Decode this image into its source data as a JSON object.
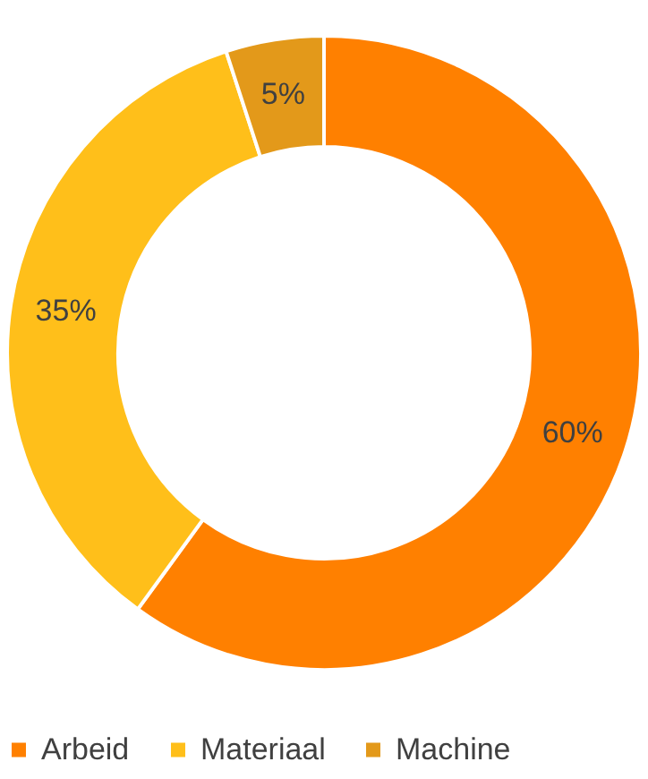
{
  "chart_data": {
    "type": "donut",
    "categories": [
      "Arbeid",
      "Materiaal",
      "Machine"
    ],
    "values": [
      60,
      35,
      5
    ],
    "colors": [
      "#ff8000",
      "#ffbf1a",
      "#e3991a"
    ],
    "value_labels": [
      "60%",
      "35%",
      "5%"
    ],
    "legend": "bottom"
  }
}
